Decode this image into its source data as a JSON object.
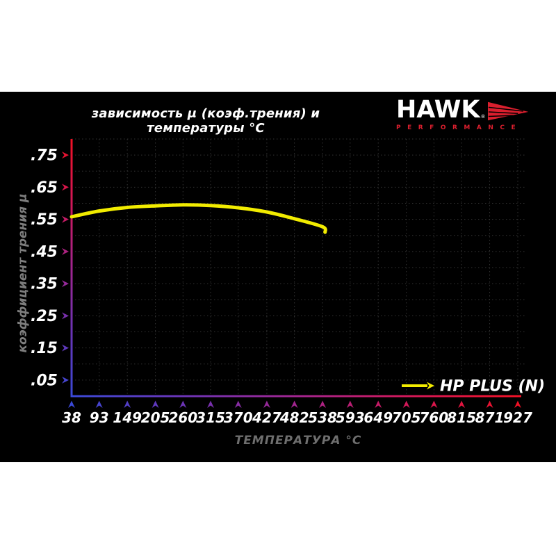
{
  "page": {
    "background": "#ffffff",
    "panel_background": "#000000"
  },
  "logo": {
    "brand": "HAWK",
    "registered": "®",
    "sub": "PERFORMANCE",
    "brand_color": "#ffffff",
    "accent_color": "#da1f2e"
  },
  "chart_data": {
    "type": "line",
    "title": "зависимость μ (коэф.трения) и температуры °C",
    "xlabel": "ТЕМПЕРАТУРА °C",
    "ylabel": "коэффициент трения μ",
    "xlim": [
      38,
      927
    ],
    "ylim": [
      0,
      0.8
    ],
    "x_ticks": [
      38,
      93,
      149,
      205,
      260,
      315,
      370,
      427,
      482,
      538,
      593,
      649,
      705,
      760,
      815,
      871,
      927
    ],
    "y_ticks": [
      0.05,
      0.15,
      0.25,
      0.35,
      0.45,
      0.55,
      0.65,
      0.75
    ],
    "y_tick_labels": [
      ".05",
      ".15",
      ".25",
      ".35",
      ".45",
      ".55",
      ".65",
      ".75"
    ],
    "grid": {
      "show": true,
      "style": "dotted",
      "color": "#343434",
      "y_step": 0.05
    },
    "axis_colors": {
      "y_top_to_bottom": [
        "#f01125",
        "#d11858",
        "#a1258f",
        "#6b34b5",
        "#3a49d6"
      ],
      "x_left_to_right": [
        "#3a49d6",
        "#6b34b5",
        "#a1258f",
        "#d11858",
        "#f01125"
      ]
    },
    "legend": {
      "label": "HP PLUS (N)",
      "line_color": "#f2ec00",
      "position": "bottom-right"
    },
    "series": [
      {
        "name": "HP PLUS (N)",
        "color": "#f2ec00",
        "x": [
          38,
          93,
          149,
          205,
          260,
          315,
          370,
          427,
          482,
          538,
          543
        ],
        "y": [
          0.558,
          0.576,
          0.587,
          0.592,
          0.595,
          0.593,
          0.586,
          0.573,
          0.552,
          0.527,
          0.51
        ]
      }
    ]
  }
}
